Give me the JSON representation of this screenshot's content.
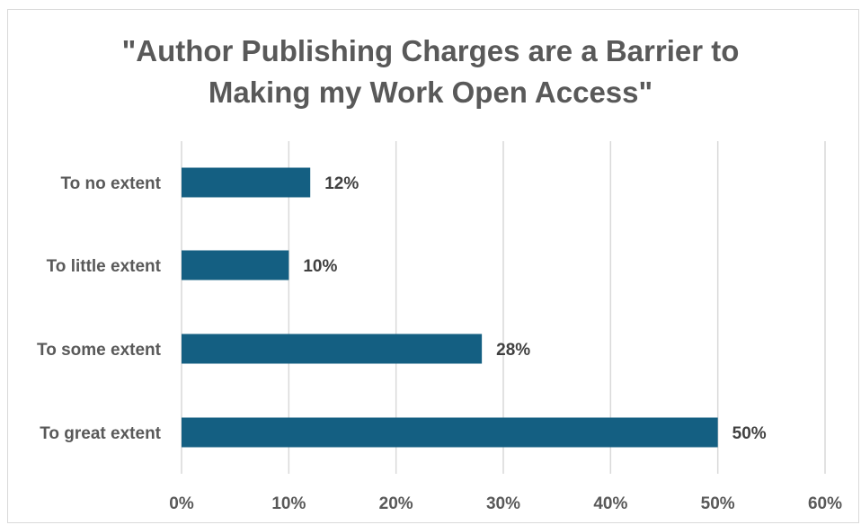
{
  "chart_data": {
    "type": "bar",
    "orientation": "horizontal",
    "title_lines": [
      "\"Author Publishing Charges are a Barrier to",
      "Making my Work Open Access\""
    ],
    "categories": [
      "To no extent",
      "To little extent",
      "To some extent",
      "To great extent"
    ],
    "values": [
      12,
      10,
      28,
      50
    ],
    "data_labels": [
      "12%",
      "10%",
      "28%",
      "50%"
    ],
    "xlim": [
      0,
      60
    ],
    "x_ticks": [
      0,
      10,
      20,
      30,
      40,
      50,
      60
    ],
    "x_tick_labels": [
      "0%",
      "10%",
      "20%",
      "30%",
      "40%",
      "50%",
      "60%"
    ],
    "grid": true,
    "legend": "none",
    "bar_color": "#145f82"
  }
}
